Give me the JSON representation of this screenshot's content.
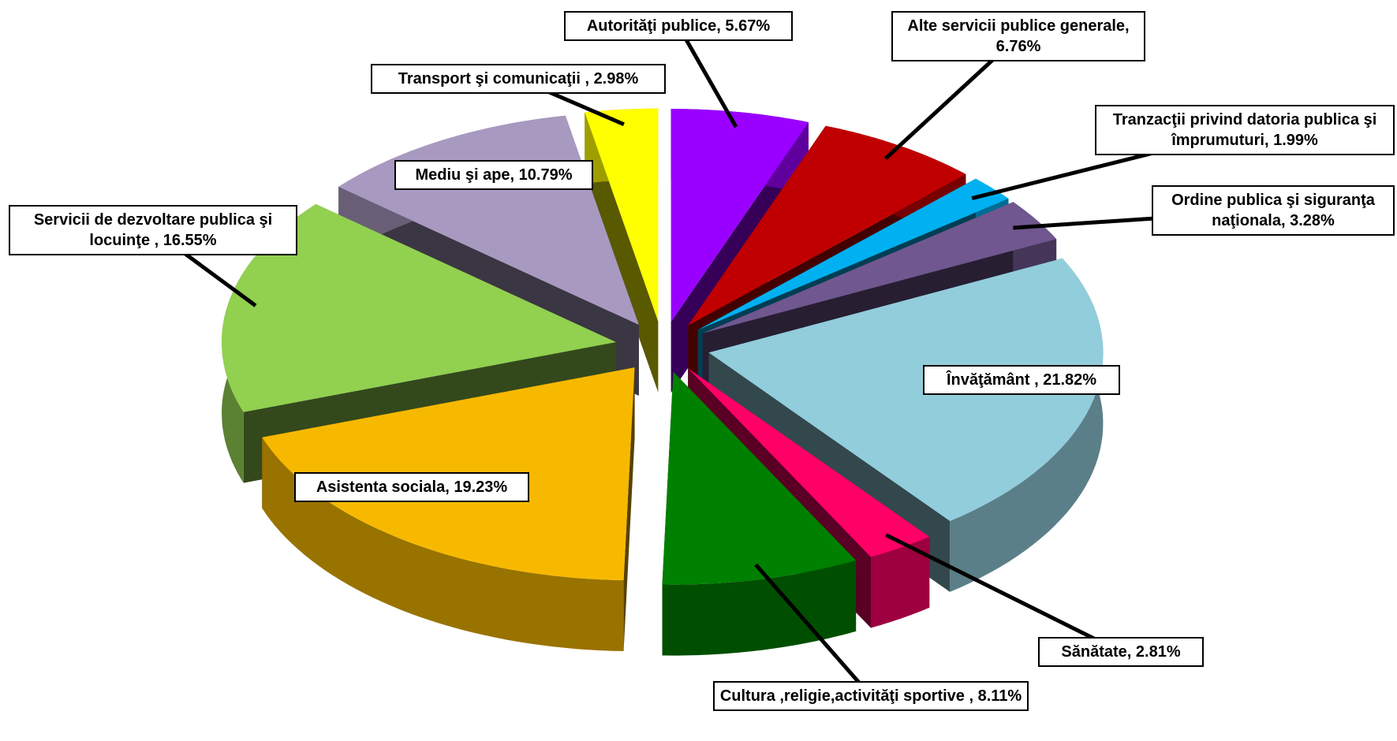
{
  "chart_data": {
    "type": "pie",
    "categories": [
      "Autorităţi publice,",
      "Alte servicii publice generale,",
      "Tranzacţii privind datoria publica şi împrumuturi,",
      "Ordine publica şi siguranţa naţionala,",
      "Învăţământ ,",
      "Sănătate,",
      "Cultura ,religie,activităţi sportive ,",
      "Asistenta sociala,",
      "Servicii de dezvoltare publica şi locuinţe ,",
      "Mediu şi ape,",
      "Transport şi comunicaţii ,"
    ],
    "values": [
      5.67,
      6.76,
      1.99,
      3.28,
      21.82,
      2.81,
      8.11,
      19.23,
      16.55,
      10.79,
      2.98
    ],
    "value_labels": [
      "5.67%",
      "6.76%",
      "1.99%",
      "3.28%",
      "21.82%",
      "2.81%",
      "8.11%",
      "19.23%",
      "16.55%",
      "10.79%",
      "2.98%"
    ],
    "colors": [
      "#9900ff",
      "#c00000",
      "#00b0f0",
      "#70578f",
      "#92cddc",
      "#ff0066",
      "#008000",
      "#f7b900",
      "#92d050",
      "#a899c0",
      "#ffff00"
    ]
  }
}
